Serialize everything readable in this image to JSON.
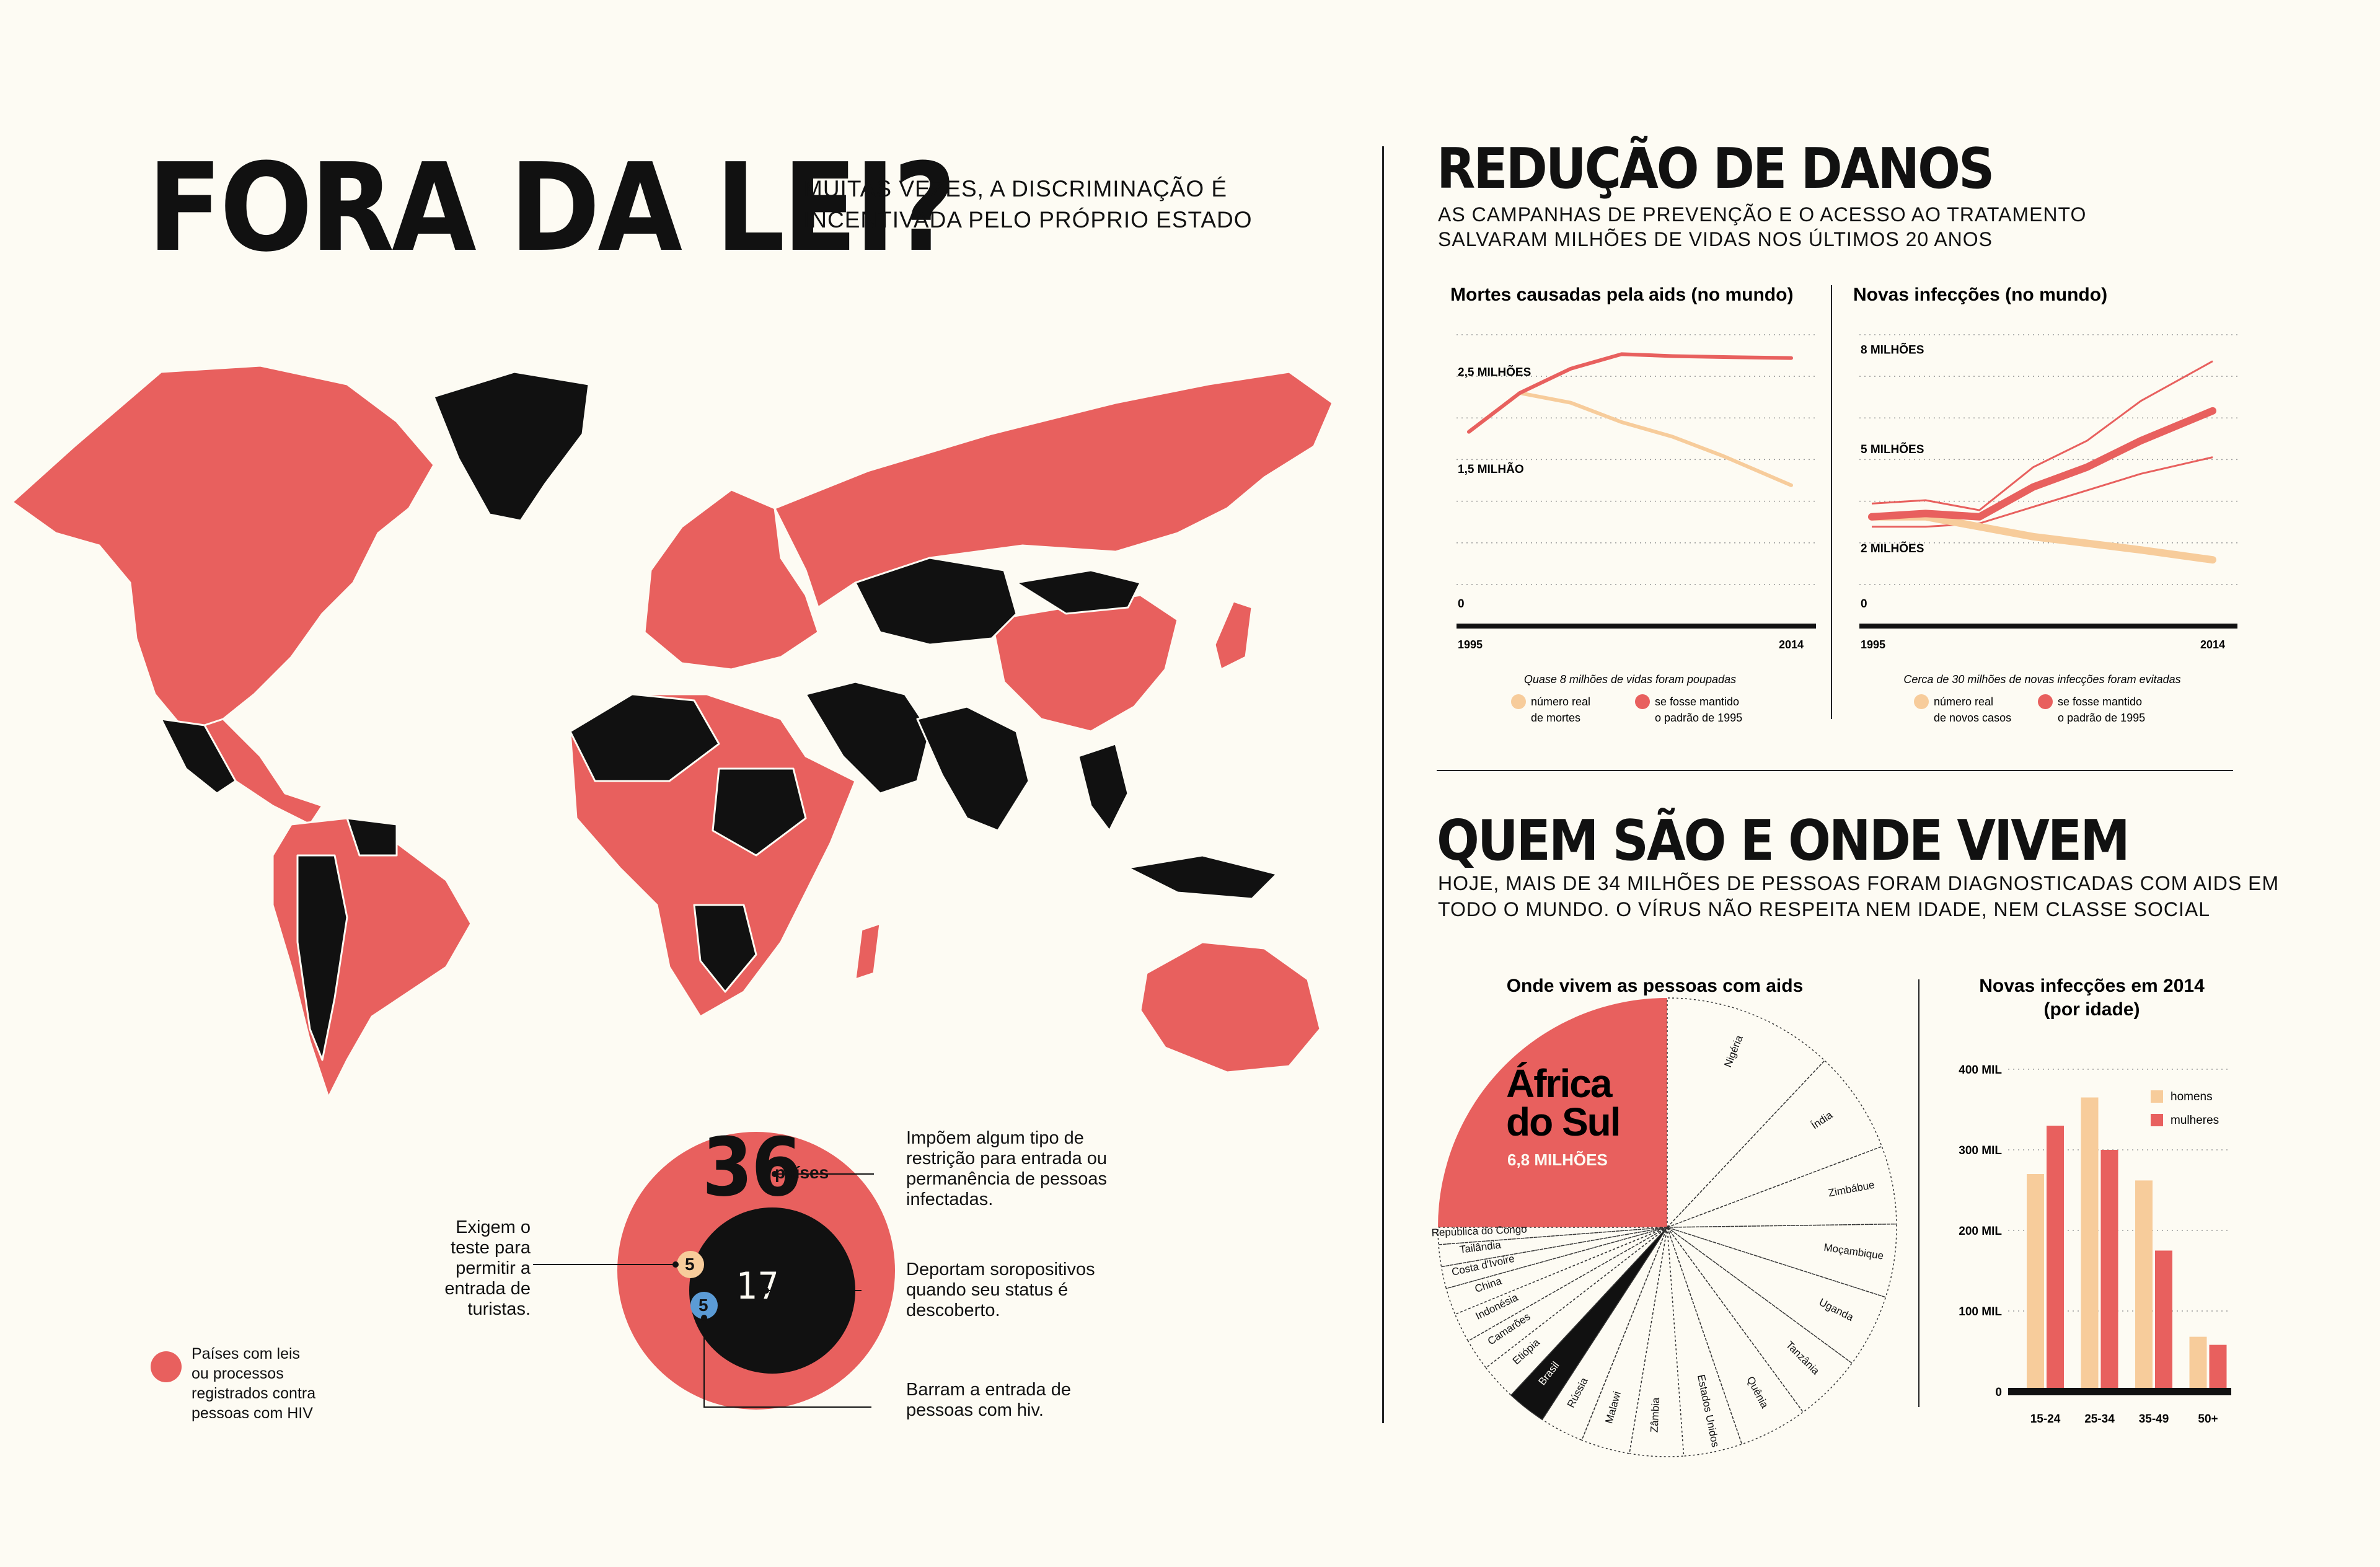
{
  "left": {
    "title": "FORA DA LEI?",
    "subtitle_line1": "MUITAS VEZES, A DISCRIMINAÇÃO É",
    "subtitle_line2": "INCENTIVADA PELO PRÓPRIO ESTADO",
    "legend_text": [
      "Países com leis",
      "ou processos",
      "registrados contra",
      "pessoas com HIV"
    ],
    "colors": {
      "law": "#e8605e",
      "restriction": "#111111",
      "background": "#fdfbf3"
    },
    "circles": {
      "big_number": "36",
      "big_unit": "países",
      "big_desc": [
        "Impõem algum tipo de",
        "restrição para entrada ou",
        "permanência de pessoas",
        "infectadas."
      ],
      "mid_number": "17",
      "mid_desc": [
        "Deportam soropositivos",
        "quando seu status é",
        "descoberto."
      ],
      "test_number": "5",
      "test_desc": [
        "Exigem o",
        "teste para",
        "permitir a",
        "entrada de",
        "turistas."
      ],
      "bar_number": "5",
      "bar_desc": [
        "Barram a entrada de",
        "pessoas com hiv."
      ]
    }
  },
  "right_top": {
    "title": "REDUÇÃO DE DANOS",
    "subtitle_line1": "AS CAMPANHAS DE PREVENÇÃO E O ACESSO AO TRATAMENTO",
    "subtitle_line2": "SALVARAM MILHÕES DE VIDAS NOS ÚLTIMOS 20 ANOS"
  },
  "right_bottom": {
    "title": "QUEM SÃO E ONDE VIVEM",
    "subtitle_line1": "HOJE, MAIS DE 34 MILHÕES DE PESSOAS FORAM DIAGNOSTICADAS COM AIDS EM",
    "subtitle_line2": "TODO O MUNDO. O VÍRUS NÃO RESPEITA NEM IDADE, NEM CLASSE SOCIAL"
  },
  "chart_data": [
    {
      "type": "line",
      "title": "Mortes causadas pela aids (no mundo)",
      "x": [
        1995,
        1998,
        2001,
        2004,
        2007,
        2010,
        2014
      ],
      "xticks": [
        "1995",
        "2014"
      ],
      "yticks": [
        {
          "value": 0,
          "label": "0"
        },
        {
          "value": 1.5,
          "label": "1,5 MILHÃO"
        },
        {
          "value": 2.5,
          "label": "2,5 MILHÕES"
        }
      ],
      "ylim": [
        0,
        3.0
      ],
      "series": [
        {
          "name_lines": [
            "número real",
            "de mortes"
          ],
          "color": "#f7cc9b",
          "values": [
            2.0,
            2.4,
            2.3,
            2.1,
            1.95,
            1.75,
            1.45
          ]
        },
        {
          "name_lines": [
            "se fosse mantido",
            "o padrão de 1995"
          ],
          "color": "#e8605e",
          "values": [
            2.0,
            2.4,
            2.65,
            2.8,
            2.78,
            2.77,
            2.76
          ]
        }
      ],
      "note": "Quase 8 milhões de vidas foram poupadas"
    },
    {
      "type": "line",
      "title": "Novas infecções (no mundo)",
      "x": [
        1995,
        1998,
        2001,
        2004,
        2007,
        2010,
        2014
      ],
      "xticks": [
        "1995",
        "2014"
      ],
      "yticks": [
        {
          "value": 0,
          "label": "0"
        },
        {
          "value": 2,
          "label": "2 MILHÕES"
        },
        {
          "value": 5,
          "label": "5 MILHÕES"
        },
        {
          "value": 8,
          "label": "8 MILHÕES"
        }
      ],
      "ylim": [
        0,
        8.8
      ],
      "series": [
        {
          "name_lines": [
            "número real",
            "de novos casos"
          ],
          "color": "#f7cc9b",
          "values": [
            3.3,
            3.3,
            3.0,
            2.7,
            2.5,
            2.3,
            2.0
          ]
        },
        {
          "name_lines": [
            "se fosse mantido",
            "o padrão de 1995"
          ],
          "color": "#e8605e",
          "values": [
            3.3,
            3.4,
            3.3,
            4.2,
            4.8,
            5.6,
            6.5
          ]
        }
      ],
      "band": {
        "upper": [
          3.7,
          3.8,
          3.5,
          4.8,
          5.6,
          6.8,
          8.0
        ],
        "lower": [
          3.0,
          3.0,
          3.1,
          3.6,
          4.1,
          4.6,
          5.1
        ]
      },
      "note": "Cerca de 30 milhões de novas infecções foram evitadas"
    },
    {
      "type": "pie",
      "title": "Onde vivem as pessoas com aids",
      "highlight": {
        "label_line1": "África",
        "label_line2": "do Sul",
        "value_label": "6,8 MILHÕES",
        "value": 6.8
      },
      "slices": [
        {
          "label": "Nigéria",
          "value": 3.5
        },
        {
          "label": "Índia",
          "value": 2.1
        },
        {
          "label": "Zimbábue",
          "value": 1.6
        },
        {
          "label": "Moçambique",
          "value": 1.5
        },
        {
          "label": "Uganda",
          "value": 1.5
        },
        {
          "label": "Tanzânia",
          "value": 1.4
        },
        {
          "label": "Quênia",
          "value": 1.4
        },
        {
          "label": "Estados Unidos",
          "value": 1.2
        },
        {
          "label": "Zâmbia",
          "value": 1.1
        },
        {
          "label": "Malawi",
          "value": 1.0
        },
        {
          "label": "Rússia",
          "value": 0.9
        },
        {
          "label": "Brasil",
          "value": 0.8
        },
        {
          "label": "Etiópia",
          "value": 0.75
        },
        {
          "label": "Camarões",
          "value": 0.65
        },
        {
          "label": "Indonésia",
          "value": 0.6
        },
        {
          "label": "China",
          "value": 0.55
        },
        {
          "label": "Costa d'Ivoire",
          "value": 0.45
        },
        {
          "label": "Tailândia",
          "value": 0.45
        },
        {
          "label": "República do Congo",
          "value": 0.35
        }
      ]
    },
    {
      "type": "bar",
      "title_line1": "Novas infecções em 2014",
      "title_line2": "(por idade)",
      "categories": [
        "15-24",
        "25-34",
        "35-49",
        "50+"
      ],
      "series": [
        {
          "name": "homens",
          "color": "#f7cc9b",
          "values": [
            270,
            365,
            262,
            68
          ]
        },
        {
          "name": "mulheres",
          "color": "#e8605e",
          "values": [
            330,
            300,
            175,
            58
          ]
        }
      ],
      "yticks": [
        {
          "value": 0,
          "label": "0"
        },
        {
          "value": 100,
          "label": "100 MIL"
        },
        {
          "value": 200,
          "label": "200 MIL"
        },
        {
          "value": 300,
          "label": "300 MIL"
        },
        {
          "value": 400,
          "label": "400 MIL"
        }
      ],
      "ylim": [
        0,
        400
      ]
    }
  ]
}
